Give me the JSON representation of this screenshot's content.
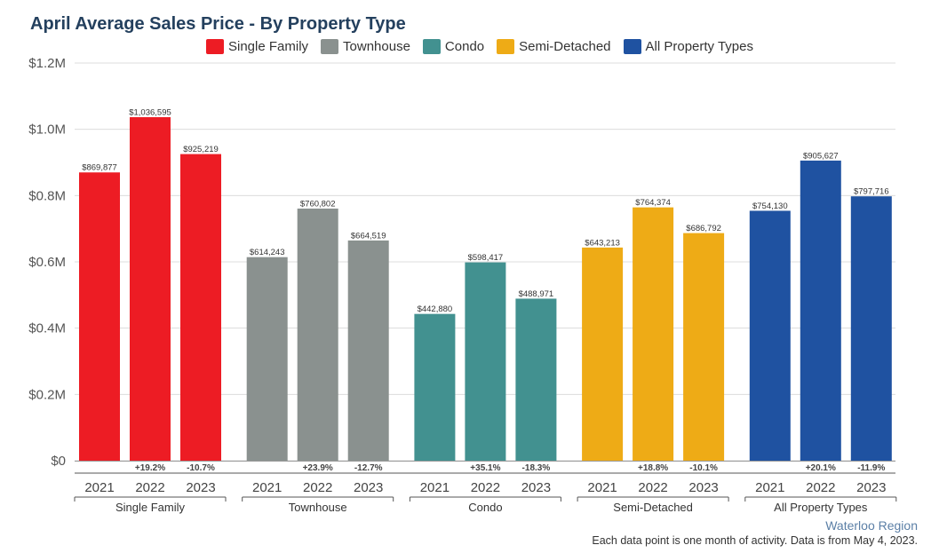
{
  "header": {
    "title": "April Average Sales Price - By Property Type"
  },
  "footer": {
    "region": "Waterloo Region",
    "note": "Each data point is one month of activity. Data is from May 4, 2023."
  },
  "chart_data": {
    "type": "bar",
    "title": "April Average Sales Price - By Property Type",
    "ylim": [
      0,
      1200000
    ],
    "yticks": [
      {
        "value": 0,
        "label": "$0"
      },
      {
        "value": 200000,
        "label": "$0.2M"
      },
      {
        "value": 400000,
        "label": "$0.4M"
      },
      {
        "value": 600000,
        "label": "$0.6M"
      },
      {
        "value": 800000,
        "label": "$0.8M"
      },
      {
        "value": 1000000,
        "label": "$1.0M"
      },
      {
        "value": 1200000,
        "label": "$1.2M"
      }
    ],
    "grid": true,
    "legend_position": "top",
    "years": [
      "2021",
      "2022",
      "2023"
    ],
    "groups": [
      {
        "name": "Single Family",
        "color": "#ed1c24",
        "values": [
          869877,
          1036595,
          925219
        ],
        "labels": [
          "$869,877",
          "$1,036,595",
          "$925,219"
        ],
        "changes": [
          "",
          "+19.2%",
          "-10.7%"
        ]
      },
      {
        "name": "Townhouse",
        "color": "#8a918f",
        "values": [
          614243,
          760802,
          664519
        ],
        "labels": [
          "$614,243",
          "$760,802",
          "$664,519"
        ],
        "changes": [
          "",
          "+23.9%",
          "-12.7%"
        ]
      },
      {
        "name": "Condo",
        "color": "#429190",
        "values": [
          442880,
          598417,
          488971
        ],
        "labels": [
          "$442,880",
          "$598,417",
          "$488,971"
        ],
        "changes": [
          "",
          "+35.1%",
          "-18.3%"
        ]
      },
      {
        "name": "Semi-Detached",
        "color": "#eeab16",
        "values": [
          643213,
          764374,
          686792
        ],
        "labels": [
          "$643,213",
          "$764,374",
          "$686,792"
        ],
        "changes": [
          "",
          "+18.8%",
          "-10.1%"
        ]
      },
      {
        "name": "All Property Types",
        "color": "#1f52a1",
        "values": [
          754130,
          905627,
          797716
        ],
        "labels": [
          "$754,130",
          "$905,627",
          "$797,716"
        ],
        "changes": [
          "",
          "+20.1%",
          "-11.9%"
        ]
      }
    ]
  }
}
